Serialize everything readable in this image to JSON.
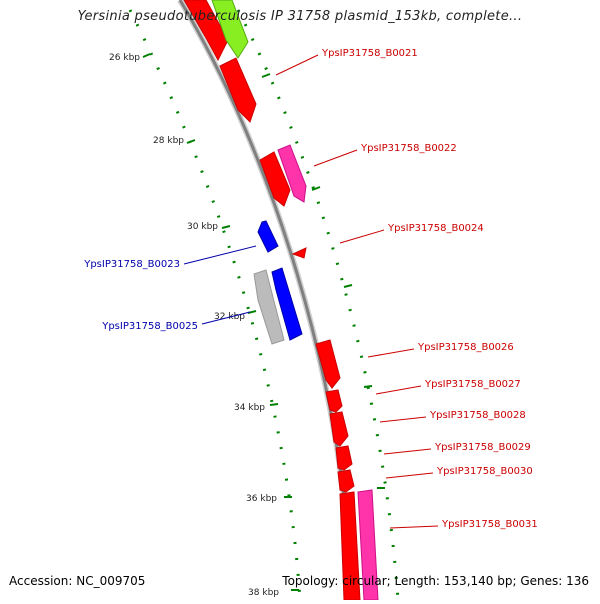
{
  "title": "Yersinia pseudotuberculosis IP 31758 plasmid_153kb, complete...",
  "accession": "Accession: NC_009705",
  "summary": "Topology: circular; Length: 153,140 bp; Genes: 136",
  "colors": {
    "forward_gene": "#ff0000",
    "forward_gene_alt": "#ff33aa",
    "reverse_gene": "#0000ff",
    "reverse_gene_alt": "#bbbbbb",
    "highlight_gene": "#88ee22",
    "backbone": "#808080",
    "tick": "#008000",
    "forward_label": "#cc0000",
    "reverse_label": "#0000aa"
  },
  "scale_labels": [
    "26 kbp",
    "28 kbp",
    "30 kbp",
    "32 kbp",
    "34 kbp",
    "36 kbp",
    "38 kbp"
  ],
  "forward_labels": [
    "YpsIP31758_B0021",
    "YpsIP31758_B0022",
    "YpsIP31758_B0024",
    "YpsIP31758_B0026",
    "YpsIP31758_B0027",
    "YpsIP31758_B0028",
    "YpsIP31758_B0029",
    "YpsIP31758_B0030",
    "YpsIP31758_B0031"
  ],
  "reverse_labels": [
    "YpsIP31758_B0023",
    "YpsIP31758_B0025"
  ]
}
